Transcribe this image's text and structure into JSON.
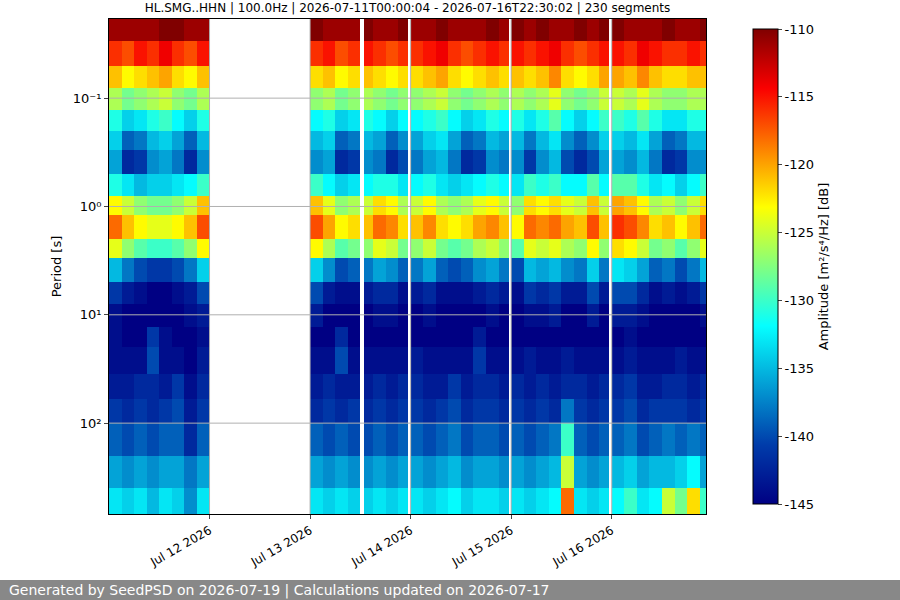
{
  "chart_data": {
    "type": "heatmap",
    "title": "HL.SMG..HHN | 100.0Hz | 2026-07-11T00:00:04 - 2026-07-16T22:30:02 | 230 segments",
    "ylabel": "Period [s]",
    "log": "y",
    "grid": true,
    "color": "Jet",
    "xlim": [
      "2026-07-11 00:00:04",
      "2026-07-16 22:30:02"
    ],
    "xticks": [
      {
        "value": "2026-07-12",
        "label": "Jul 12 2026"
      },
      {
        "value": "2026-07-13",
        "label": "Jul 13 2026"
      },
      {
        "value": "2026-07-14",
        "label": "Jul 14 2026"
      },
      {
        "value": "2026-07-15",
        "label": "Jul 15 2026"
      },
      {
        "value": "2026-07-16",
        "label": "Jul 16 2026"
      }
    ],
    "ylim": [
      0.0186,
      690
    ],
    "yticks": [
      {
        "value": 0.1,
        "label": "10⁻¹"
      },
      {
        "value": 1,
        "label": "10⁰"
      },
      {
        "value": 10,
        "label": "10¹"
      },
      {
        "value": 100,
        "label": "10²"
      }
    ],
    "x_edges": [
      "2026-07-11 00:00:04",
      "2026-07-11 03:00",
      "2026-07-11 06:00",
      "2026-07-11 09:00",
      "2026-07-11 12:00",
      "2026-07-11 15:00",
      "2026-07-11 18:00",
      "2026-07-11 21:00",
      "2026-07-12 00:00",
      "2026-07-13 00:00",
      "2026-07-13 03:00",
      "2026-07-13 06:00",
      "2026-07-13 09:00",
      "2026-07-13 12:00",
      "2026-07-13 12:45",
      "2026-07-13 15:00",
      "2026-07-13 18:00",
      "2026-07-13 21:00",
      "2026-07-13 23:15",
      "2026-07-14 00:00",
      "2026-07-14 03:00",
      "2026-07-14 06:00",
      "2026-07-14 09:00",
      "2026-07-14 12:00",
      "2026-07-14 15:00",
      "2026-07-14 18:00",
      "2026-07-14 21:00",
      "2026-07-14 23:30",
      "2026-07-15 00:00",
      "2026-07-15 03:00",
      "2026-07-15 06:00",
      "2026-07-15 09:00",
      "2026-07-15 12:00",
      "2026-07-15 15:00",
      "2026-07-15 18:00",
      "2026-07-15 21:00",
      "2026-07-15 23:15",
      "2026-07-16 00:00",
      "2026-07-16 03:00",
      "2026-07-16 06:00",
      "2026-07-16 09:00",
      "2026-07-16 12:00",
      "2026-07-16 15:00",
      "2026-07-16 18:00",
      "2026-07-16 21:00",
      "2026-07-16 22:30:02"
    ],
    "y_edges": [
      0.0186,
      0.03,
      0.05,
      0.08,
      0.13,
      0.2,
      0.3,
      0.5,
      0.8,
      1.2,
      2,
      3,
      5,
      8,
      13,
      20,
      35,
      60,
      100,
      200,
      400,
      690
    ],
    "z": [
      [
        -111,
        -111,
        -111,
        -111,
        -110,
        -110,
        -111,
        -111,
        null,
        -110,
        -111,
        -111,
        -111,
        null,
        -110,
        -111,
        -111,
        -110,
        null,
        -111,
        -111,
        -110,
        -111,
        -111,
        -111,
        -110,
        -111,
        null,
        -110,
        -111,
        -110,
        -111,
        -111,
        -110,
        -111,
        -110,
        null,
        -110,
        -111,
        -111,
        -111,
        -110,
        -111,
        -111,
        -110
      ],
      [
        -116,
        -117,
        -115,
        -116,
        -114,
        -116,
        -117,
        -115,
        null,
        -116,
        -115,
        -117,
        -116,
        null,
        -115,
        -116,
        -117,
        -116,
        null,
        -116,
        -115,
        -114,
        -116,
        -117,
        -116,
        -115,
        -116,
        null,
        -115,
        -116,
        -115,
        -114,
        -116,
        -117,
        -116,
        -115,
        null,
        -115,
        -116,
        -114,
        -115,
        -116,
        -116,
        -115,
        -116
      ],
      [
        -121,
        -123,
        -122,
        -121,
        -120,
        -122,
        -123,
        -121,
        null,
        -122,
        -121,
        -123,
        -122,
        null,
        -121,
        -122,
        -123,
        -122,
        null,
        -122,
        -121,
        -120,
        -122,
        -123,
        -122,
        -121,
        -122,
        null,
        -121,
        -122,
        -121,
        -119,
        -122,
        -123,
        -122,
        -120,
        null,
        -120,
        -121,
        -119,
        -121,
        -122,
        -122,
        -121,
        -121
      ],
      [
        -126,
        -128,
        -127,
        -126,
        -125,
        -127,
        -128,
        -126,
        null,
        -127,
        -126,
        -128,
        -127,
        null,
        -126,
        -127,
        -128,
        -127,
        null,
        -127,
        -126,
        -125,
        -127,
        -128,
        -127,
        -126,
        -127,
        null,
        -126,
        -127,
        -126,
        -124,
        -127,
        -128,
        -127,
        -125,
        null,
        -125,
        -126,
        -124,
        -126,
        -127,
        -127,
        -126,
        -126
      ],
      [
        -131,
        -134,
        -133,
        -131,
        -130,
        -132,
        -134,
        -131,
        null,
        -132,
        -131,
        -134,
        -133,
        null,
        -131,
        -132,
        -134,
        -132,
        null,
        -132,
        -131,
        -130,
        -132,
        -134,
        -133,
        -131,
        -132,
        null,
        -131,
        -133,
        -131,
        -129,
        -132,
        -134,
        -132,
        -130,
        null,
        -130,
        -131,
        -129,
        -131,
        -133,
        -133,
        -131,
        -131
      ],
      [
        -134,
        -139,
        -138,
        -135,
        -134,
        -136,
        -139,
        -135,
        null,
        -135,
        -134,
        -139,
        -138,
        null,
        -135,
        -136,
        -139,
        -137,
        null,
        -136,
        -134,
        -133,
        -136,
        -139,
        -138,
        -135,
        -136,
        null,
        -135,
        -138,
        -135,
        -133,
        -137,
        -139,
        -137,
        -134,
        null,
        -134,
        -135,
        -133,
        -136,
        -139,
        -138,
        -135,
        -135
      ],
      [
        -136,
        -142,
        -141,
        -137,
        -136,
        -138,
        -142,
        -137,
        null,
        -137,
        -136,
        -142,
        -141,
        null,
        -137,
        -138,
        -142,
        -140,
        null,
        -138,
        -136,
        -135,
        -138,
        -142,
        -141,
        -137,
        -138,
        null,
        -137,
        -141,
        -137,
        -135,
        -140,
        -142,
        -140,
        -136,
        null,
        -136,
        -137,
        -135,
        -138,
        -142,
        -141,
        -137,
        -137
      ],
      [
        -131,
        -133,
        -135,
        -134,
        -134,
        -133,
        -132,
        -130,
        null,
        -130,
        -132,
        -134,
        -133,
        null,
        -132,
        -131,
        -131,
        -133,
        null,
        -132,
        -131,
        -133,
        -134,
        -133,
        -132,
        -131,
        -132,
        null,
        -133,
        -130,
        -131,
        -130,
        -132,
        -132,
        -129,
        -132,
        null,
        -129,
        -129,
        -131,
        -133,
        -132,
        -134,
        -132,
        -130
      ],
      [
        -123,
        -125,
        -127,
        -128,
        -128,
        -127,
        -125,
        -121,
        null,
        -121,
        -124,
        -127,
        -126,
        null,
        -125,
        -122,
        -123,
        -126,
        null,
        -125,
        -123,
        -126,
        -127,
        -126,
        -124,
        -123,
        -125,
        null,
        -127,
        -122,
        -123,
        -122,
        -124,
        -125,
        -121,
        -125,
        null,
        -120,
        -121,
        -123,
        -126,
        -125,
        -127,
        -125,
        -122
      ],
      [
        -118,
        -121,
        -123,
        -124,
        -124,
        -123,
        -121,
        -117,
        null,
        -117,
        -120,
        -123,
        -122,
        null,
        -121,
        -118,
        -119,
        -122,
        null,
        -121,
        -119,
        -122,
        -123,
        -122,
        -120,
        -119,
        -121,
        null,
        -123,
        -118,
        -119,
        -118,
        -120,
        -121,
        -117,
        -121,
        null,
        -116,
        -117,
        -119,
        -122,
        -121,
        -123,
        -121,
        -118
      ],
      [
        -124,
        -127,
        -129,
        -130,
        -130,
        -129,
        -127,
        -123,
        null,
        -123,
        -126,
        -129,
        -128,
        null,
        -127,
        -124,
        -125,
        -128,
        null,
        -127,
        -125,
        -128,
        -129,
        -128,
        -126,
        -125,
        -127,
        null,
        -129,
        -124,
        -125,
        -124,
        -126,
        -127,
        -123,
        -127,
        null,
        -122,
        -123,
        -125,
        -128,
        -127,
        -129,
        -127,
        -124
      ],
      [
        -135,
        -138,
        -140,
        -141,
        -141,
        -140,
        -138,
        -134,
        null,
        -134,
        -137,
        -140,
        -139,
        null,
        -138,
        -136,
        -137,
        -139,
        null,
        -138,
        -136,
        -139,
        -140,
        -139,
        -137,
        -136,
        -138,
        null,
        -140,
        -135,
        -136,
        -135,
        -137,
        -138,
        -134,
        -138,
        null,
        -133,
        -134,
        -136,
        -139,
        -138,
        -140,
        -138,
        -135
      ],
      [
        -141,
        -143,
        -144,
        -145,
        -145,
        -144,
        -143,
        -140,
        null,
        -140,
        -143,
        -144,
        -144,
        null,
        -143,
        -142,
        -142,
        -144,
        null,
        -143,
        -142,
        -144,
        -144,
        -144,
        -143,
        -142,
        -143,
        null,
        -144,
        -141,
        -142,
        -141,
        -143,
        -143,
        -140,
        -143,
        null,
        -140,
        -140,
        -142,
        -144,
        -143,
        -144,
        -143,
        -141
      ],
      [
        -144,
        -145,
        -145,
        -145,
        -145,
        -145,
        -144,
        -143,
        null,
        -143,
        -145,
        -145,
        -145,
        null,
        -145,
        -144,
        -144,
        -145,
        null,
        -145,
        -144,
        -145,
        -145,
        -145,
        -145,
        -144,
        -145,
        null,
        -145,
        -144,
        -144,
        -143,
        -145,
        -145,
        -143,
        -145,
        null,
        -143,
        -143,
        -144,
        -145,
        -145,
        -145,
        -145,
        -144
      ],
      [
        -144,
        -145,
        -145,
        -141,
        -144,
        -145,
        -145,
        -144,
        null,
        -145,
        -145,
        -142,
        -145,
        null,
        -145,
        -145,
        -145,
        -145,
        null,
        -145,
        -145,
        -145,
        -145,
        -145,
        -143,
        -145,
        -145,
        null,
        -145,
        -145,
        -145,
        -145,
        -145,
        -145,
        -145,
        -145,
        null,
        -145,
        -144,
        -145,
        -145,
        -145,
        -145,
        -145,
        -145
      ],
      [
        -144,
        -144,
        -144,
        -140,
        -144,
        -144,
        -145,
        -143,
        null,
        -144,
        -144,
        -140,
        -144,
        null,
        -144,
        -144,
        -144,
        -144,
        null,
        -143,
        -144,
        -144,
        -144,
        -144,
        -141,
        -144,
        -144,
        null,
        -144,
        -143,
        -144,
        -144,
        -143,
        -144,
        -144,
        -144,
        null,
        -144,
        -143,
        -144,
        -144,
        -144,
        -143,
        -144,
        -144
      ],
      [
        -143,
        -143,
        -142,
        -142,
        -143,
        -141,
        -144,
        -142,
        null,
        -143,
        -142,
        -143,
        -143,
        null,
        -143,
        -142,
        -143,
        -142,
        null,
        -142,
        -143,
        -143,
        -141,
        -143,
        -142,
        -142,
        -143,
        null,
        -142,
        -143,
        -142,
        -143,
        -142,
        -142,
        -143,
        -142,
        null,
        -142,
        -141,
        -143,
        -143,
        -142,
        -142,
        -143,
        -142
      ],
      [
        -141,
        -142,
        -141,
        -142,
        -141,
        -140,
        -143,
        -141,
        null,
        -142,
        -141,
        -142,
        -141,
        null,
        -142,
        -141,
        -142,
        -141,
        null,
        -141,
        -142,
        -141,
        -140,
        -142,
        -141,
        -141,
        -142,
        null,
        -141,
        -142,
        -141,
        -142,
        -138,
        -141,
        -142,
        -141,
        null,
        -141,
        -140,
        -142,
        -141,
        -141,
        -141,
        -142,
        -141
      ],
      [
        -139,
        -140,
        -139,
        -140,
        -139,
        -139,
        -142,
        -139,
        null,
        -139,
        -140,
        -139,
        -140,
        null,
        -140,
        -139,
        -140,
        -139,
        null,
        -139,
        -140,
        -139,
        -138,
        -140,
        -139,
        -139,
        -140,
        null,
        -139,
        -140,
        -139,
        -138,
        -130,
        -139,
        -140,
        -139,
        null,
        -139,
        -138,
        -140,
        -139,
        -138,
        -139,
        -138,
        -139
      ],
      [
        -136,
        -137,
        -136,
        -137,
        -136,
        -136,
        -138,
        -136,
        null,
        -136,
        -137,
        -136,
        -137,
        null,
        -137,
        -136,
        -137,
        -136,
        null,
        -136,
        -137,
        -136,
        -135,
        -137,
        -136,
        -136,
        -137,
        null,
        -136,
        -137,
        -136,
        -135,
        -125,
        -136,
        -137,
        -136,
        null,
        -135,
        -134,
        -136,
        -135,
        -135,
        -134,
        -132,
        -136
      ],
      [
        -133,
        -134,
        -133,
        -135,
        -133,
        -134,
        -137,
        -133,
        null,
        -133,
        -134,
        -133,
        -134,
        null,
        -134,
        -133,
        -134,
        -133,
        null,
        -133,
        -134,
        -133,
        -132,
        -134,
        -133,
        -133,
        -134,
        null,
        -133,
        -134,
        -133,
        -132,
        -118,
        -133,
        -134,
        -133,
        null,
        -132,
        -130,
        -133,
        -132,
        -125,
        -128,
        -122,
        -130
      ]
    ],
    "colorbar": {
      "title": "Amplitude [m²/s⁴/Hz] [dB]",
      "range": [
        -145,
        -110
      ],
      "ticks": [
        -145,
        -140,
        -135,
        -130,
        -125,
        -120,
        -115,
        -110
      ]
    }
  },
  "footer": "Generated by SeedPSD on 2026-07-19 | Calculations updated on 2026-07-17"
}
